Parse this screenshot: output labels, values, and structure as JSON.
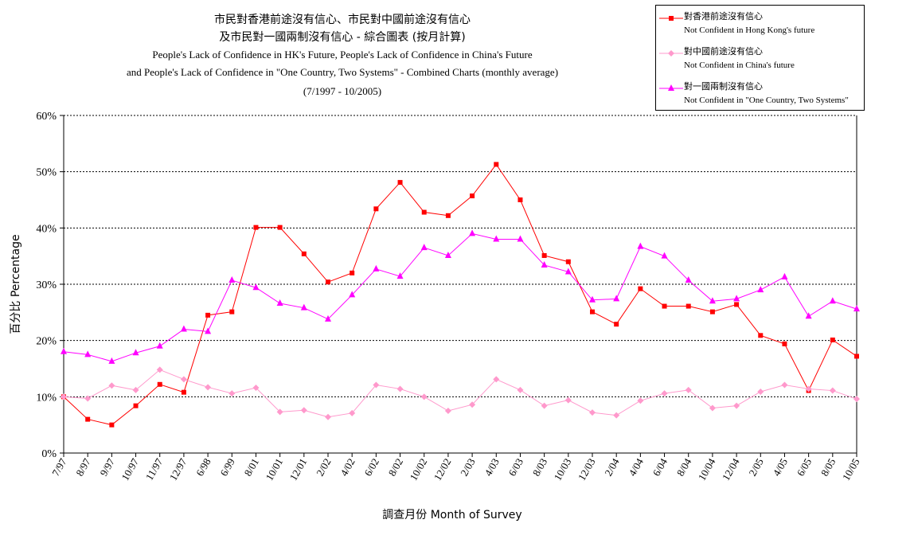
{
  "title": {
    "line1_zh": "市民對香港前途沒有信心、市民對中國前途沒有信心",
    "line2_zh": "及市民對一國兩制沒有信心 - 綜合圖表 (按月計算)",
    "line3_en": "People's Lack of Confidence in HK's Future, People's Lack of Confidence in China's Future",
    "line4_en": "and People's Lack of Confidence in \"One Country, Two Systems\" - Combined Charts (monthly average)",
    "period": "(7/1997 - 10/2005)"
  },
  "legend": {
    "items": [
      {
        "zh": "對香港前途沒有信心",
        "en": "Not Confident in Hong Kong's future",
        "color": "#ff0000",
        "marker": "square"
      },
      {
        "zh": "對中國前途沒有信心",
        "en": "Not Confident in China's future",
        "color": "#ff99cc",
        "marker": "diamond"
      },
      {
        "zh": "對一國兩制沒有信心",
        "en": "Not Confident in \"One Country, Two Systems\"",
        "color": "#ff00ff",
        "marker": "triangle"
      }
    ]
  },
  "chart_data": {
    "type": "line",
    "title": "People's Lack of Confidence in HK's Future, People's Lack of Confidence in China's Future and People's Lack of Confidence in \"One Country, Two Systems\" - Combined Charts (monthly average)",
    "xlabel": "調查月份 Month of Survey",
    "ylabel": "百分比 Percentage",
    "ylim": [
      0,
      60
    ],
    "yticks": [
      "0%",
      "10%",
      "20%",
      "30%",
      "40%",
      "50%",
      "60%"
    ],
    "grid": true,
    "legend_position": "top-right",
    "categories": [
      "7/97",
      "8/97",
      "9/97",
      "10/97",
      "11/97",
      "12/97",
      "6/98",
      "6/99",
      "8/01",
      "10/01",
      "12/01",
      "2/02",
      "4/02",
      "6/02",
      "8/02",
      "10/02",
      "12/02",
      "2/03",
      "4/03",
      "6/03",
      "8/03",
      "10/03",
      "12/03",
      "2/04",
      "4/04",
      "6/04",
      "8/04",
      "10/04",
      "12/04",
      "2/05",
      "4/05",
      "6/05",
      "8/05",
      "10/05"
    ],
    "series": [
      {
        "name": "對香港前途沒有信心 Not Confident in Hong Kong's future",
        "color": "#ff0000",
        "marker": "square",
        "values": [
          10,
          6,
          5,
          8.4,
          12.2,
          10.8,
          24.5,
          25.1,
          40.1,
          40.1,
          35.4,
          30.4,
          32,
          43.4,
          48.1,
          42.8,
          42.2,
          45.7,
          51.3,
          45,
          35.1,
          34,
          25.1,
          22.9,
          29.2,
          26.1,
          26.1,
          25.1,
          26.4,
          20.9,
          19.4,
          11.1,
          20.1,
          17.2
        ]
      },
      {
        "name": "對中國前途沒有信心 Not Confident in China's future",
        "color": "#ff99cc",
        "marker": "diamond",
        "values": [
          10,
          9.7,
          12,
          11.2,
          14.8,
          13.1,
          11.7,
          10.6,
          11.6,
          7.3,
          7.6,
          6.4,
          7.1,
          12.1,
          11.4,
          10,
          7.5,
          8.6,
          13.1,
          11.2,
          8.4,
          9.4,
          7.2,
          6.7,
          9.3,
          10.6,
          11.2,
          8,
          8.4,
          10.9,
          12.1,
          11.4,
          11.1,
          9.6
        ]
      },
      {
        "name": "對一國兩制沒有信心 Not Confident in \"One Country, Two Systems\"",
        "color": "#ff00ff",
        "marker": "triangle",
        "values": [
          18,
          17.5,
          16.3,
          17.8,
          19,
          22,
          21.6,
          30.7,
          29.4,
          26.6,
          25.8,
          23.8,
          28.1,
          32.7,
          31.4,
          36.5,
          35.1,
          39,
          38,
          38,
          33.4,
          32.2,
          27.2,
          27.4,
          36.7,
          35,
          30.7,
          27,
          27.4,
          29,
          31.3,
          24.3,
          27,
          25.6
        ]
      }
    ]
  }
}
